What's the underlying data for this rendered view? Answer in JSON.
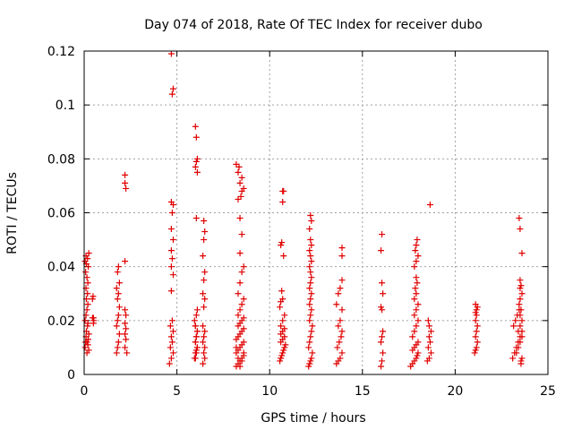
{
  "chart_data": {
    "type": "scatter",
    "title": "Day 074 of 2018, Rate Of TEC Index for receiver dubo",
    "xlabel": "GPS time / hours",
    "ylabel": "ROTI / TECUs",
    "xlim": [
      0,
      25
    ],
    "ylim": [
      0,
      0.12
    ],
    "x_ticks": [
      "0",
      "5",
      "10",
      "15",
      "20",
      "25"
    ],
    "y_ticks": [
      "0",
      "0.02",
      "0.04",
      "0.06",
      "0.08",
      "0.1",
      "0.12"
    ],
    "grid": true,
    "marker": "plus",
    "color": "#e00000",
    "series": [
      {
        "x": [
          0.05,
          0.08,
          0.1,
          0.12,
          0.15,
          0.18,
          0.2,
          0.22,
          0.25,
          0.05,
          0.1,
          0.15,
          0.2,
          0.25,
          0.12,
          0.18,
          0.1,
          0.2,
          0.15,
          0.08,
          0.22,
          0.12,
          0.05,
          0.18,
          0.1,
          0.25,
          0.15,
          0.2,
          0.5,
          0.52,
          0.45,
          0.48,
          0.5,
          0.45,
          1.75,
          1.8,
          1.85,
          1.9,
          1.75,
          1.8,
          1.85,
          1.9,
          1.8,
          1.85,
          1.75,
          1.9,
          1.8,
          1.85,
          2.2,
          2.25,
          2.2,
          2.25,
          2.2,
          2.25,
          2.2,
          2.2,
          2.25,
          2.2,
          2.2,
          2.3,
          4.6,
          4.7,
          4.8,
          4.65,
          4.75,
          4.7,
          4.8,
          4.65,
          4.75,
          4.7,
          4.8,
          4.7,
          4.75,
          4.7,
          4.8,
          4.7,
          4.75,
          4.8,
          4.7,
          4.75,
          4.8,
          4.7,
          5.95,
          6.0,
          6.05,
          6.1,
          6.0,
          6.05,
          6.1,
          6.0,
          5.95,
          6.05,
          6.1,
          6.0,
          6.05,
          6.1,
          6.0,
          6.05,
          6.1,
          6.0,
          6.05,
          6.1,
          6.0,
          6.05,
          6.1,
          6.05,
          6.0,
          6.4,
          6.5,
          6.45,
          6.5,
          6.4,
          6.45,
          6.5,
          6.4,
          6.45,
          6.5,
          6.4,
          6.45,
          6.5,
          6.4,
          6.45,
          6.5,
          6.45,
          8.2,
          8.3,
          8.4,
          8.5,
          8.6,
          8.2,
          8.3,
          8.4,
          8.5,
          8.6,
          8.2,
          8.3,
          8.4,
          8.5,
          8.6,
          8.3,
          8.4,
          8.5,
          8.6,
          8.3,
          8.4,
          8.5,
          8.6,
          8.2,
          8.3,
          8.4,
          8.5,
          8.6,
          8.3,
          8.4,
          8.5,
          8.6,
          8.4,
          8.5,
          8.4,
          8.3,
          8.45,
          8.5,
          8.6,
          8.4,
          8.5,
          8.3,
          8.35,
          8.2,
          10.55,
          10.6,
          10.65,
          10.7,
          10.75,
          10.8,
          10.85,
          10.6,
          10.7,
          10.8,
          10.6,
          10.7,
          10.8,
          10.6,
          10.7,
          10.8,
          10.55,
          10.6,
          10.7,
          10.65,
          10.75,
          10.6,
          10.65,
          10.7,
          10.75,
          10.7,
          10.6,
          12.1,
          12.15,
          12.2,
          12.25,
          12.3,
          12.1,
          12.15,
          12.2,
          12.25,
          12.3,
          12.15,
          12.2,
          12.25,
          12.15,
          12.2,
          12.25,
          12.15,
          12.2,
          12.25,
          12.2,
          12.15,
          12.25,
          12.2,
          12.15,
          12.25,
          12.2,
          12.15,
          12.25,
          12.2,
          13.6,
          13.7,
          13.8,
          13.9,
          13.65,
          13.75,
          13.85,
          13.9,
          13.7,
          13.8,
          13.9,
          13.6,
          13.7,
          13.8,
          13.9,
          13.9,
          13.9,
          16.0,
          16.05,
          16.1,
          16.0,
          16.05,
          16.1,
          16.0,
          16.05,
          16.1,
          16.05,
          16.0,
          16.05,
          17.6,
          17.7,
          17.8,
          17.9,
          17.95,
          18.0,
          17.7,
          17.8,
          17.9,
          18.0,
          17.7,
          17.8,
          17.9,
          18.0,
          17.8,
          17.9,
          18.0,
          17.8,
          17.9,
          17.85,
          17.95,
          17.9,
          17.8,
          17.9,
          18.0,
          17.85,
          17.9,
          17.95,
          18.5,
          18.6,
          18.7,
          18.55,
          18.65,
          18.6,
          18.7,
          18.6,
          18.55,
          18.65,
          21.05,
          21.1,
          21.15,
          21.2,
          21.1,
          21.15,
          21.2,
          21.1,
          21.15,
          21.1,
          21.15,
          21.2,
          21.1,
          23.1,
          23.2,
          23.3,
          23.4,
          23.5,
          23.6,
          23.15,
          23.25,
          23.35,
          23.45,
          23.55,
          23.6,
          23.3,
          23.4,
          23.5,
          23.6,
          23.4,
          23.5,
          23.6,
          23.5,
          23.55,
          23.45,
          23.5,
          23.6,
          23.5,
          23.55,
          23.5,
          23.6,
          23.5,
          23.45,
          23.55
        ],
        "y": [
          0.01,
          0.012,
          0.014,
          0.016,
          0.008,
          0.018,
          0.011,
          0.013,
          0.009,
          0.02,
          0.022,
          0.024,
          0.026,
          0.015,
          0.028,
          0.03,
          0.032,
          0.034,
          0.036,
          0.038,
          0.04,
          0.041,
          0.042,
          0.043,
          0.044,
          0.045,
          0.012,
          0.019,
          0.021,
          0.02,
          0.028,
          0.029,
          0.019,
          0.021,
          0.008,
          0.01,
          0.012,
          0.015,
          0.018,
          0.02,
          0.022,
          0.025,
          0.028,
          0.03,
          0.032,
          0.034,
          0.038,
          0.04,
          0.01,
          0.013,
          0.015,
          0.017,
          0.019,
          0.022,
          0.024,
          0.042,
          0.069,
          0.071,
          0.074,
          0.008,
          0.004,
          0.006,
          0.008,
          0.01,
          0.012,
          0.014,
          0.016,
          0.018,
          0.02,
          0.031,
          0.037,
          0.04,
          0.043,
          0.046,
          0.05,
          0.054,
          0.06,
          0.063,
          0.064,
          0.104,
          0.106,
          0.119,
          0.006,
          0.008,
          0.009,
          0.01,
          0.012,
          0.014,
          0.016,
          0.018,
          0.02,
          0.022,
          0.024,
          0.006,
          0.008,
          0.01,
          0.012,
          0.014,
          0.016,
          0.018,
          0.058,
          0.075,
          0.077,
          0.079,
          0.08,
          0.088,
          0.092,
          0.004,
          0.006,
          0.008,
          0.01,
          0.012,
          0.014,
          0.016,
          0.018,
          0.025,
          0.028,
          0.03,
          0.035,
          0.038,
          0.044,
          0.05,
          0.053,
          0.057,
          0.003,
          0.004,
          0.005,
          0.006,
          0.007,
          0.008,
          0.009,
          0.01,
          0.011,
          0.012,
          0.013,
          0.014,
          0.015,
          0.016,
          0.017,
          0.018,
          0.019,
          0.02,
          0.021,
          0.022,
          0.024,
          0.026,
          0.028,
          0.01,
          0.006,
          0.003,
          0.005,
          0.008,
          0.03,
          0.034,
          0.038,
          0.04,
          0.045,
          0.052,
          0.058,
          0.065,
          0.066,
          0.068,
          0.069,
          0.071,
          0.073,
          0.075,
          0.077,
          0.078,
          0.005,
          0.006,
          0.007,
          0.008,
          0.009,
          0.01,
          0.011,
          0.012,
          0.013,
          0.014,
          0.015,
          0.016,
          0.017,
          0.018,
          0.02,
          0.022,
          0.025,
          0.027,
          0.028,
          0.031,
          0.044,
          0.048,
          0.049,
          0.064,
          0.068,
          0.068,
          0.006,
          0.003,
          0.004,
          0.005,
          0.006,
          0.008,
          0.01,
          0.012,
          0.014,
          0.016,
          0.018,
          0.02,
          0.022,
          0.024,
          0.026,
          0.028,
          0.03,
          0.032,
          0.034,
          0.036,
          0.038,
          0.04,
          0.042,
          0.044,
          0.046,
          0.048,
          0.05,
          0.054,
          0.057,
          0.059,
          0.004,
          0.005,
          0.006,
          0.008,
          0.01,
          0.012,
          0.014,
          0.016,
          0.018,
          0.02,
          0.024,
          0.026,
          0.03,
          0.032,
          0.035,
          0.044,
          0.047,
          0.003,
          0.005,
          0.008,
          0.012,
          0.014,
          0.016,
          0.025,
          0.024,
          0.03,
          0.034,
          0.046,
          0.052,
          0.003,
          0.004,
          0.005,
          0.006,
          0.007,
          0.008,
          0.009,
          0.01,
          0.011,
          0.012,
          0.014,
          0.016,
          0.018,
          0.02,
          0.022,
          0.024,
          0.026,
          0.028,
          0.03,
          0.032,
          0.034,
          0.036,
          0.04,
          0.042,
          0.044,
          0.046,
          0.048,
          0.05,
          0.005,
          0.006,
          0.008,
          0.01,
          0.012,
          0.014,
          0.016,
          0.018,
          0.02,
          0.063,
          0.008,
          0.009,
          0.01,
          0.012,
          0.014,
          0.016,
          0.018,
          0.02,
          0.022,
          0.023,
          0.024,
          0.025,
          0.026,
          0.006,
          0.008,
          0.01,
          0.012,
          0.014,
          0.016,
          0.018,
          0.02,
          0.022,
          0.024,
          0.005,
          0.006,
          0.008,
          0.01,
          0.012,
          0.014,
          0.016,
          0.018,
          0.02,
          0.022,
          0.024,
          0.026,
          0.028,
          0.03,
          0.032,
          0.033,
          0.035,
          0.045,
          0.054,
          0.058,
          0.004
        ]
      }
    ]
  }
}
